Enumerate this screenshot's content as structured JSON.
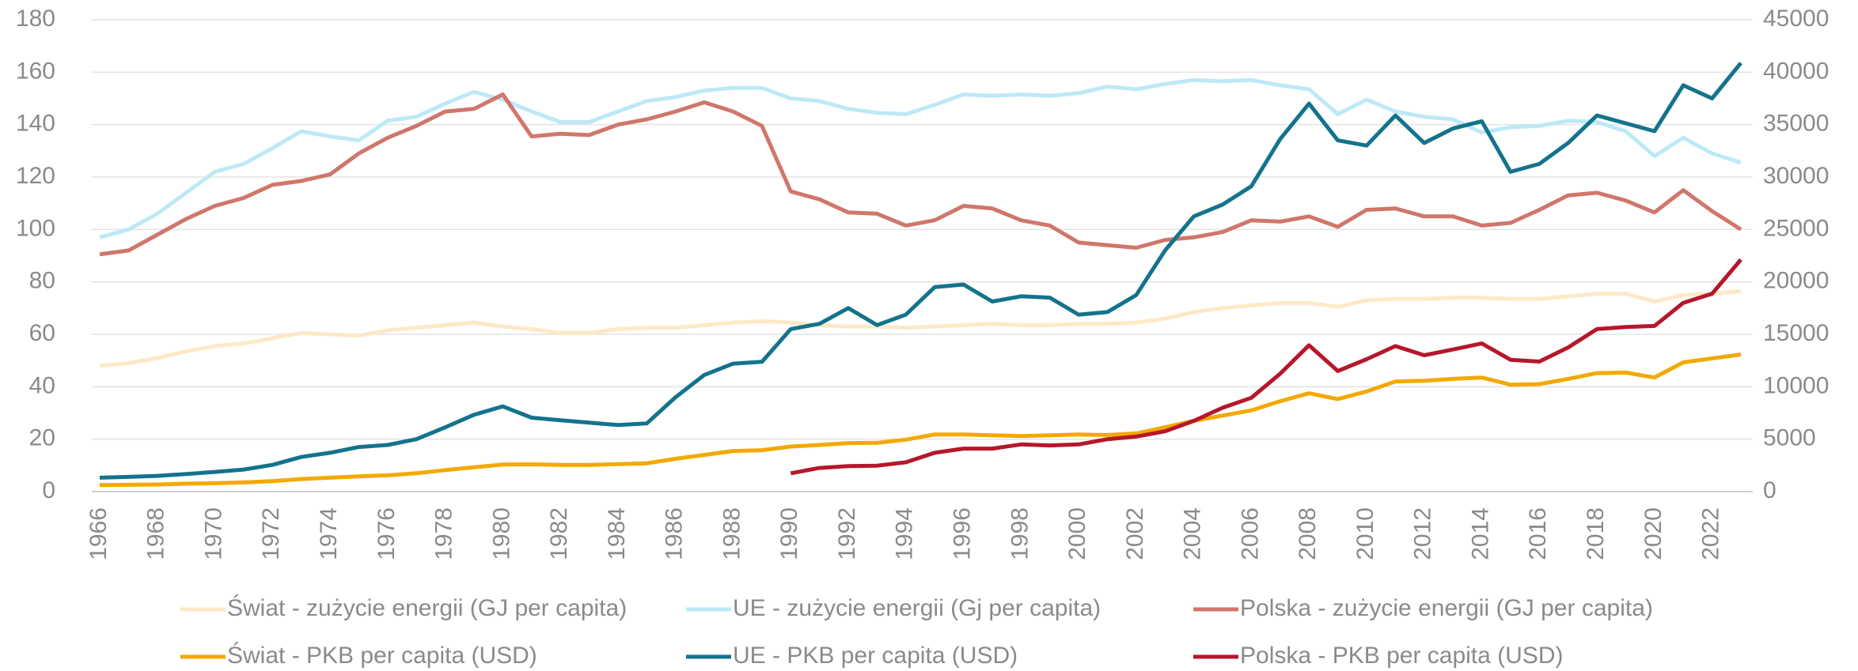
{
  "chart_data": {
    "type": "line",
    "categories": [
      "1966",
      null,
      "1968",
      null,
      "1970",
      null,
      "1972",
      null,
      "1974",
      null,
      "1976",
      null,
      "1978",
      null,
      "1980",
      null,
      "1982",
      null,
      "1984",
      null,
      "1986",
      null,
      "1988",
      null,
      "1990",
      null,
      "1992",
      null,
      "1994",
      null,
      "1996",
      null,
      "1998",
      null,
      "2000",
      null,
      "2002",
      null,
      "2004",
      null,
      "2006",
      null,
      "2008",
      null,
      "2010",
      null,
      "2012",
      null,
      "2014",
      null,
      "2016",
      null,
      "2018",
      null,
      "2020",
      null,
      "2022",
      null
    ],
    "ylim": [
      0,
      180
    ],
    "yticks": [
      0,
      20,
      40,
      60,
      80,
      100,
      120,
      140,
      160,
      180
    ],
    "y2lim": [
      0,
      45000
    ],
    "y2ticks": [
      0,
      5000,
      10000,
      15000,
      20000,
      25000,
      30000,
      35000,
      40000,
      45000
    ],
    "grid": true,
    "series": [
      {
        "name": "Świat - zużycie energii (GJ per capita)",
        "color": "#fde9c8",
        "values": [
          48,
          49,
          51,
          53.5,
          55.5,
          56.5,
          58.5,
          60.5,
          60,
          59.5,
          61.5,
          62.5,
          63.5,
          64.5,
          63,
          62,
          60.5,
          60.5,
          62,
          62.5,
          62.5,
          63.5,
          64.5,
          65,
          64.5,
          63.5,
          63,
          63,
          62.5,
          63,
          63.5,
          64,
          63.5,
          63.5,
          64,
          64,
          64.5,
          66,
          68.5,
          70,
          71,
          72,
          72,
          70.5,
          73,
          73.5,
          73.5,
          74,
          74,
          73.5,
          73.5,
          74.5,
          75.5,
          75.5,
          72.5,
          75,
          75.5,
          76.5
        ]
      },
      {
        "name": "UE - zużycie energii (Gj per capita)",
        "color": "#bde9f7",
        "values": [
          97,
          100,
          106,
          114,
          122,
          125,
          131,
          137.5,
          135.5,
          134,
          141.5,
          143,
          148,
          152.5,
          149.5,
          145,
          141,
          141,
          145,
          149,
          150.5,
          153,
          154,
          154,
          150,
          149,
          146,
          144.5,
          144,
          147.5,
          151.5,
          151,
          151.5,
          151,
          152,
          154.5,
          153.5,
          155.5,
          157,
          156.5,
          157,
          155,
          153.5,
          144,
          149.5,
          145,
          143,
          142,
          137,
          139,
          139.5,
          141.5,
          141,
          137.5,
          128,
          135,
          129,
          125.5
        ]
      },
      {
        "name": "Polska - zużycie energii (GJ per capita)",
        "color": "#d0766b",
        "values": [
          90.5,
          92,
          98,
          104,
          109,
          112,
          117,
          118.5,
          121,
          129,
          135,
          139.5,
          145,
          146,
          151.5,
          135.5,
          136.5,
          136,
          140,
          142,
          145,
          148.5,
          145,
          139.5,
          114.5,
          111.5,
          106.5,
          106,
          101.5,
          103.5,
          109,
          108,
          103.5,
          101.5,
          95,
          94,
          93,
          96,
          97,
          99,
          103.5,
          103,
          105,
          101,
          107.5,
          108,
          105,
          105,
          101.5,
          102.5,
          107.5,
          113,
          114,
          111,
          106.5,
          115,
          107,
          100
        ]
      },
      {
        "name": "Świat - PKB per capita (USD)",
        "color": "#f2a900",
        "axis": "y2",
        "values": [
          625,
          650,
          675,
          750,
          800,
          875,
          1000,
          1200,
          1325,
          1450,
          1550,
          1750,
          2050,
          2325,
          2575,
          2600,
          2550,
          2550,
          2625,
          2700,
          3125,
          3500,
          3875,
          3950,
          4300,
          4450,
          4625,
          4650,
          4950,
          5450,
          5450,
          5375,
          5300,
          5375,
          5450,
          5400,
          5550,
          6125,
          6750,
          7250,
          7750,
          8625,
          9375,
          8825,
          9550,
          10500,
          10575,
          10750,
          10875,
          10200,
          10250,
          10750,
          11300,
          11350,
          10875,
          12325,
          12700,
          13075
        ]
      },
      {
        "name": "UE - PKB per capita (USD)",
        "color": "#14738c",
        "axis": "y2",
        "values": [
          1325,
          1400,
          1500,
          1675,
          1875,
          2100,
          2550,
          3300,
          3700,
          4250,
          4450,
          5000,
          6125,
          7325,
          8125,
          7050,
          6800,
          6575,
          6350,
          6500,
          9000,
          11125,
          12200,
          12375,
          15500,
          16000,
          17500,
          15875,
          16875,
          19500,
          19750,
          18125,
          18625,
          18500,
          16875,
          17125,
          18750,
          23000,
          26250,
          27375,
          29125,
          33625,
          37000,
          33500,
          33000,
          35875,
          33250,
          34625,
          35325,
          30500,
          31250,
          33250,
          35875,
          35125,
          34375,
          38750,
          37500,
          40875
        ]
      },
      {
        "name": "Polska - PKB per capita (USD)",
        "color": "#b5172b",
        "axis": "y2",
        "values": [
          null,
          null,
          null,
          null,
          null,
          null,
          null,
          null,
          null,
          null,
          null,
          null,
          null,
          null,
          null,
          null,
          null,
          null,
          null,
          null,
          null,
          null,
          null,
          null,
          1750,
          2250,
          2425,
          2475,
          2800,
          3700,
          4100,
          4100,
          4500,
          4400,
          4500,
          5000,
          5250,
          5750,
          6750,
          8000,
          8950,
          11250,
          13950,
          11500,
          12625,
          13875,
          13000,
          13550,
          14125,
          12575,
          12400,
          13750,
          15500,
          15700,
          15800,
          18000,
          18875,
          22125
        ]
      }
    ]
  }
}
